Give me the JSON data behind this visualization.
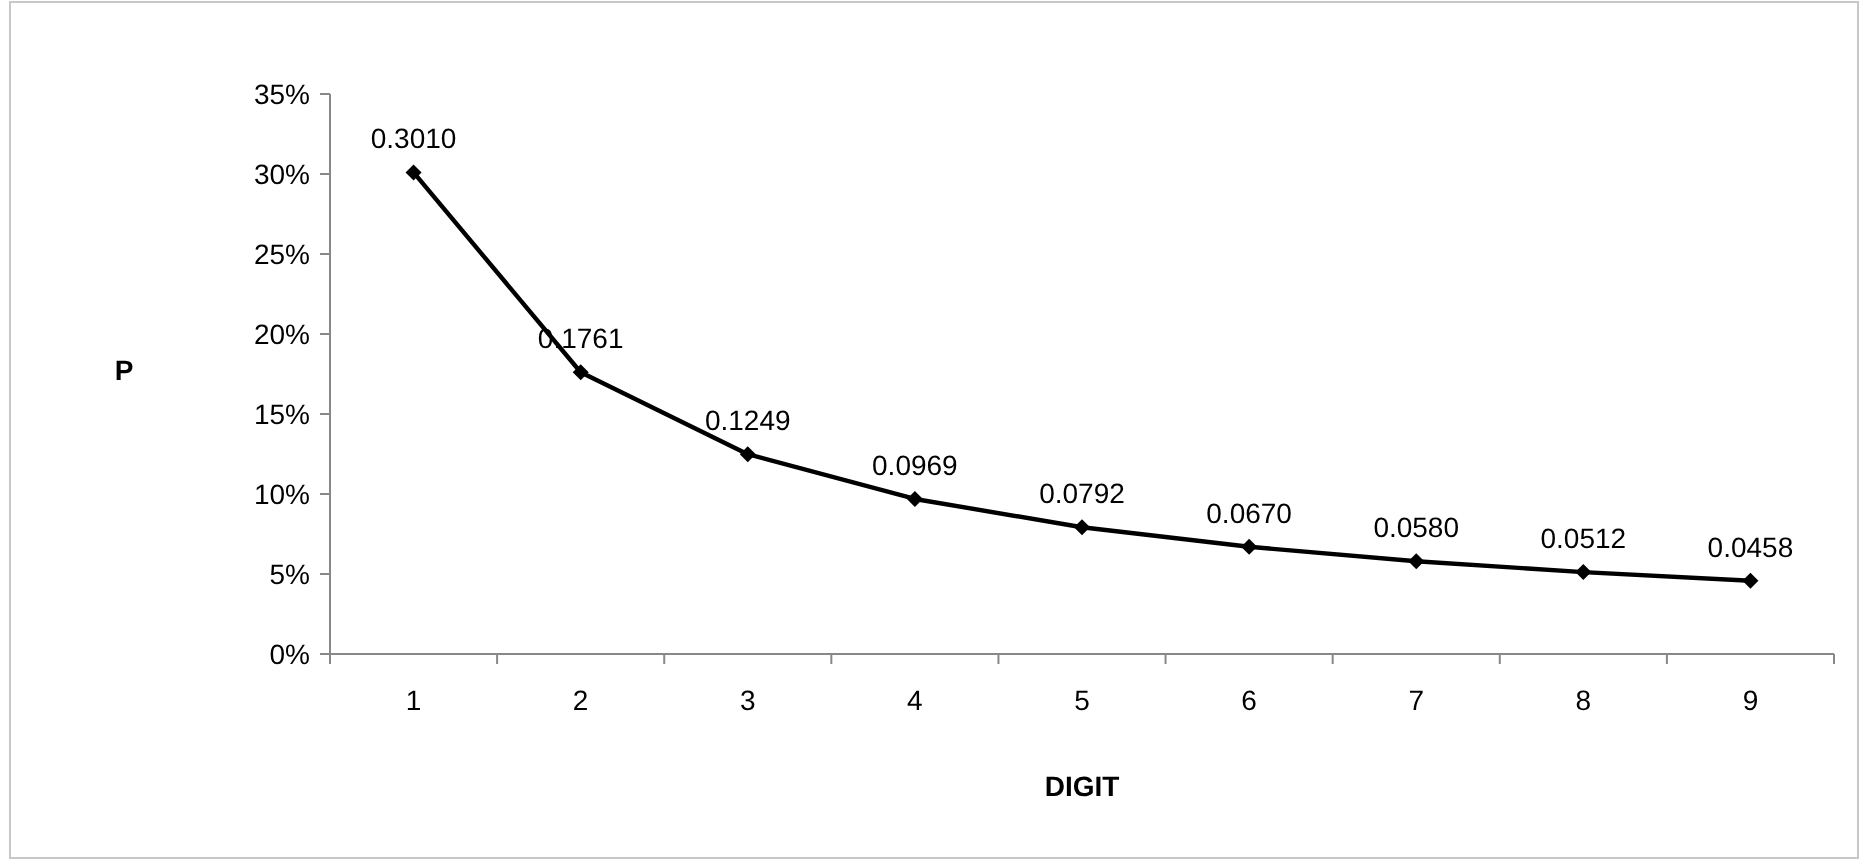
{
  "chart_data": {
    "type": "line",
    "xlabel": "DIGIT",
    "ylabel": "P",
    "categories": [
      "1",
      "2",
      "3",
      "4",
      "5",
      "6",
      "7",
      "8",
      "9"
    ],
    "series": [
      {
        "color": "#000000",
        "values": [
          0.301,
          0.1761,
          0.1249,
          0.0969,
          0.0792,
          0.067,
          0.058,
          0.0512,
          0.0458
        ],
        "value_labels": [
          "0.3010",
          "0.1761",
          "0.1249",
          "0.0969",
          "0.0792",
          "0.0670",
          "0.0580",
          "0.0512",
          "0.0458"
        ]
      }
    ],
    "ylim": [
      0,
      0.35
    ],
    "yticks": [
      {
        "value": 0,
        "label": "0%"
      },
      {
        "value": 0.05,
        "label": "5%"
      },
      {
        "value": 0.1,
        "label": "10%"
      },
      {
        "value": 0.15,
        "label": "15%"
      },
      {
        "value": 0.2,
        "label": "20%"
      },
      {
        "value": 0.25,
        "label": "25%"
      },
      {
        "value": 0.3,
        "label": "30%"
      },
      {
        "value": 0.35,
        "label": "35%"
      }
    ],
    "marker": "diamond",
    "line_style": "solid"
  }
}
